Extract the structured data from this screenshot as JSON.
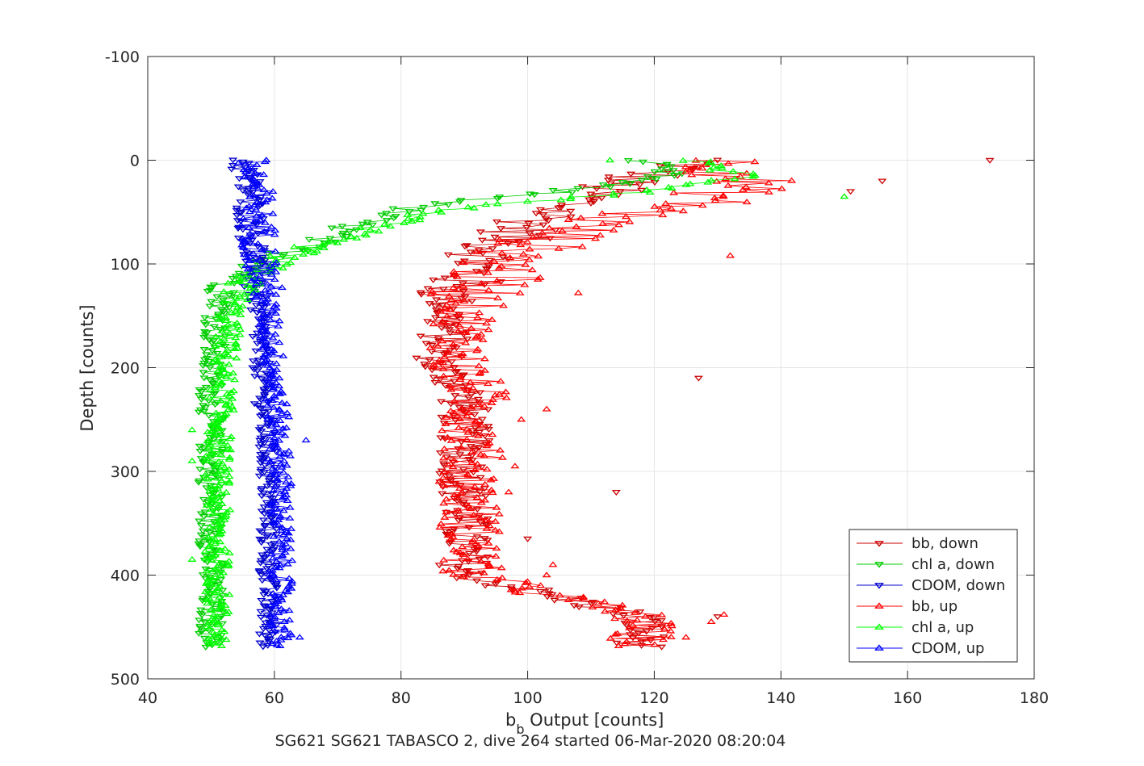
{
  "chart_data": {
    "type": "scatter",
    "xlabel_main": "b",
    "xlabel_sub": "b",
    "xlabel_rest": " Output [counts]",
    "ylabel": "Depth [counts]",
    "caption": "SG621 SG621 TABASCO 2, dive 264 started 06-Mar-2020 08:20:04",
    "xlim": [
      40,
      180
    ],
    "ylim": [
      -100,
      500
    ],
    "y_reversed": true,
    "grid": true,
    "legend_position": "bottom-right",
    "x_ticks": [
      "40",
      "60",
      "80",
      "100",
      "120",
      "140",
      "160",
      "180"
    ],
    "y_ticks": [
      "-100",
      "0",
      "100",
      "200",
      "300",
      "400",
      "500"
    ],
    "series": [
      {
        "name": "bb, down",
        "color": "#cc0000",
        "marker": "down-triangle",
        "cast": "down",
        "profile": [
          [
            0,
            128
          ],
          [
            10,
            122
          ],
          [
            20,
            115
          ],
          [
            40,
            108
          ],
          [
            60,
            101
          ],
          [
            80,
            96
          ],
          [
            100,
            92
          ],
          [
            130,
            88
          ],
          [
            160,
            87
          ],
          [
            200,
            86
          ],
          [
            220,
            90
          ],
          [
            300,
            90
          ],
          [
            400,
            90
          ],
          [
            440,
            118
          ],
          [
            470,
            118
          ]
        ],
        "spread": 4
      },
      {
        "name": "chl a, down",
        "color": "#00cc00",
        "marker": "down-triangle",
        "cast": "down",
        "profile": [
          [
            0,
            118
          ],
          [
            15,
            122
          ],
          [
            30,
            105
          ],
          [
            45,
            82
          ],
          [
            60,
            74
          ],
          [
            75,
            68
          ],
          [
            90,
            62
          ],
          [
            105,
            57
          ],
          [
            120,
            53
          ],
          [
            150,
            51
          ],
          [
            200,
            50
          ],
          [
            300,
            50
          ],
          [
            400,
            50
          ],
          [
            470,
            50
          ]
        ],
        "spread": 2
      },
      {
        "name": "CDOM, down",
        "color": "#0000cc",
        "marker": "down-triangle",
        "cast": "down",
        "profile": [
          [
            0,
            55
          ],
          [
            30,
            56
          ],
          [
            100,
            57
          ],
          [
            200,
            58
          ],
          [
            300,
            59
          ],
          [
            400,
            59
          ],
          [
            470,
            59
          ]
        ],
        "spread": 1.5
      },
      {
        "name": "bb, up",
        "color": "#ff0000",
        "marker": "up-triangle",
        "cast": "up",
        "profile": [
          [
            0,
            130
          ],
          [
            20,
            135
          ],
          [
            40,
            128
          ],
          [
            60,
            110
          ],
          [
            80,
            102
          ],
          [
            100,
            96
          ],
          [
            130,
            92
          ],
          [
            160,
            90
          ],
          [
            200,
            89
          ],
          [
            220,
            92
          ],
          [
            300,
            91
          ],
          [
            400,
            91
          ],
          [
            440,
            118
          ],
          [
            470,
            118
          ]
        ],
        "spread": 5
      },
      {
        "name": "chl a, up",
        "color": "#00ff00",
        "marker": "up-triangle",
        "cast": "up",
        "profile": [
          [
            0,
            125
          ],
          [
            15,
            135
          ],
          [
            30,
            120
          ],
          [
            45,
            90
          ],
          [
            60,
            78
          ],
          [
            75,
            70
          ],
          [
            90,
            63
          ],
          [
            105,
            58
          ],
          [
            120,
            55
          ],
          [
            150,
            53
          ],
          [
            200,
            52
          ],
          [
            300,
            51
          ],
          [
            400,
            51
          ],
          [
            470,
            51
          ]
        ],
        "spread": 2
      },
      {
        "name": "CDOM, up",
        "color": "#0000ff",
        "marker": "up-triangle",
        "cast": "up",
        "profile": [
          [
            0,
            56
          ],
          [
            30,
            57
          ],
          [
            100,
            58
          ],
          [
            200,
            60
          ],
          [
            300,
            61
          ],
          [
            400,
            61
          ],
          [
            470,
            61
          ]
        ],
        "spread": 1.8
      }
    ],
    "outliers": [
      {
        "series": "bb, down",
        "points": [
          [
            0,
            173
          ],
          [
            20,
            156
          ],
          [
            30,
            151
          ],
          [
            210,
            127
          ],
          [
            320,
            114
          ],
          [
            365,
            100
          ],
          [
            440,
            130
          ]
        ]
      },
      {
        "series": "bb, up",
        "points": [
          [
            92,
            132
          ],
          [
            128,
            108
          ],
          [
            240,
            103
          ],
          [
            250,
            99
          ],
          [
            295,
            98
          ],
          [
            320,
            97
          ],
          [
            390,
            104
          ],
          [
            400,
            103
          ],
          [
            415,
            98
          ],
          [
            438,
            131
          ],
          [
            445,
            129
          ],
          [
            460,
            125
          ]
        ]
      },
      {
        "series": "chl a, up",
        "points": [
          [
            0,
            113
          ],
          [
            35,
            150
          ],
          [
            260,
            47
          ],
          [
            290,
            47
          ],
          [
            385,
            47
          ]
        ]
      },
      {
        "series": "CDOM, up",
        "points": [
          [
            270,
            65
          ],
          [
            460,
            64
          ]
        ]
      }
    ]
  }
}
